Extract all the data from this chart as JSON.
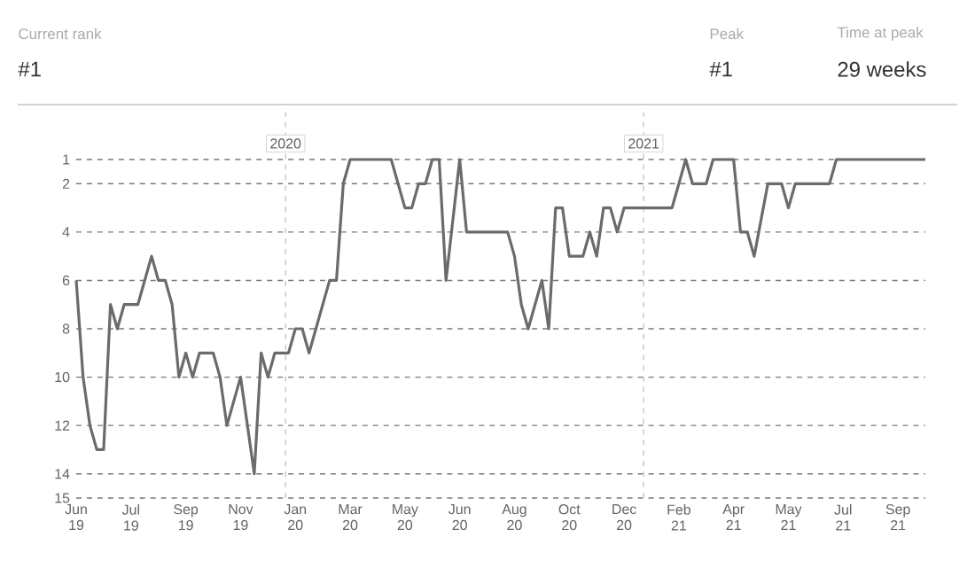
{
  "chart_data": {
    "type": "line",
    "annotations": [
      "Current rank",
      "#1",
      "Peak",
      "#1",
      "Time at peak",
      "29 weeks"
    ],
    "x": [
      "2019-06-01",
      "2019-06-08",
      "2019-06-15",
      "2019-06-22",
      "2019-06-29",
      "2019-07-06",
      "2019-07-13",
      "2019-07-20",
      "2019-08-03",
      "2019-08-17",
      "2019-08-24",
      "2019-08-31",
      "2019-09-07",
      "2019-09-14",
      "2019-09-21",
      "2019-09-28",
      "2019-10-05",
      "2019-10-19",
      "2019-10-26",
      "2019-11-02",
      "2019-11-16",
      "2019-11-30",
      "2019-12-07",
      "2019-12-14",
      "2019-12-21",
      "2020-01-04",
      "2020-01-11",
      "2020-01-18",
      "2020-01-25",
      "2020-02-15",
      "2020-02-22",
      "2020-02-29",
      "2020-03-07",
      "2020-04-18",
      "2020-04-25",
      "2020-05-02",
      "2020-05-09",
      "2020-05-16",
      "2020-05-23",
      "2020-05-30",
      "2020-06-06",
      "2020-06-13",
      "2020-06-27",
      "2020-07-04",
      "2020-08-15",
      "2020-08-22",
      "2020-08-29",
      "2020-09-05",
      "2020-09-19",
      "2020-09-26",
      "2020-10-03",
      "2020-10-10",
      "2020-10-17",
      "2020-10-31",
      "2020-11-07",
      "2020-11-14",
      "2020-11-21",
      "2020-11-28",
      "2020-12-05",
      "2020-12-12",
      "2021-01-30",
      "2021-02-13",
      "2021-02-20",
      "2021-03-06",
      "2021-03-13",
      "2021-04-03",
      "2021-04-10",
      "2021-04-17",
      "2021-04-24",
      "2021-05-08",
      "2021-05-22",
      "2021-05-29",
      "2021-06-05",
      "2021-07-10",
      "2021-07-17",
      "2021-10-16"
    ],
    "series": [
      {
        "color": "#6b6b6b",
        "values": [
          6,
          10,
          12,
          13,
          13,
          7,
          8,
          7,
          7,
          5,
          6,
          6,
          7,
          10,
          9,
          10,
          9,
          9,
          10,
          12,
          10,
          14,
          9,
          10,
          9,
          9,
          8,
          8,
          9,
          6,
          6,
          2,
          1,
          1,
          2,
          3,
          3,
          2,
          2,
          1,
          1,
          6,
          1,
          4,
          4,
          5,
          7,
          8,
          6,
          8,
          3,
          3,
          5,
          5,
          4,
          5,
          3,
          3,
          4,
          3,
          3,
          1,
          2,
          2,
          1,
          1,
          4,
          4,
          5,
          2,
          2,
          3,
          2,
          2,
          1,
          1
        ]
      }
    ],
    "xlim": [
      "2019-06-01",
      "2021-10-16"
    ],
    "ylim": [
      15,
      1
    ],
    "xticks": [
      {
        "value": "2019-06-01",
        "label": "Jun 19"
      },
      {
        "value": "2019-07-27",
        "label": "Jul 19"
      },
      {
        "value": "2019-09-21",
        "label": "Sep 19"
      },
      {
        "value": "2019-11-16",
        "label": "Nov 19"
      },
      {
        "value": "2020-01-11",
        "label": "Jan 20"
      },
      {
        "value": "2020-03-07",
        "label": "Mar 20"
      },
      {
        "value": "2020-05-02",
        "label": "May 20"
      },
      {
        "value": "2020-06-27",
        "label": "Jun 20"
      },
      {
        "value": "2020-08-22",
        "label": "Aug 20"
      },
      {
        "value": "2020-10-17",
        "label": "Oct 20"
      },
      {
        "value": "2020-12-12",
        "label": "Dec 20"
      },
      {
        "value": "2021-02-06",
        "label": "Feb 21"
      },
      {
        "value": "2021-04-03",
        "label": "Apr 21"
      },
      {
        "value": "2021-05-29",
        "label": "May 21"
      },
      {
        "value": "2021-07-24",
        "label": "Jul 21"
      },
      {
        "value": "2021-09-18",
        "label": "Sep 21"
      }
    ],
    "yticks": [
      1,
      2,
      4,
      6,
      8,
      10,
      12,
      14,
      15
    ],
    "grid": "y",
    "marker": "none",
    "line_style": "solid",
    "ref_lines": [
      {
        "axis": "x",
        "value": "2020-01-01",
        "label": "2020",
        "color": "#cccccc",
        "line_style": "dashed"
      },
      {
        "axis": "x",
        "value": "2021-01-01",
        "label": "2021",
        "color": "#cccccc",
        "line_style": "dashed"
      }
    ]
  }
}
